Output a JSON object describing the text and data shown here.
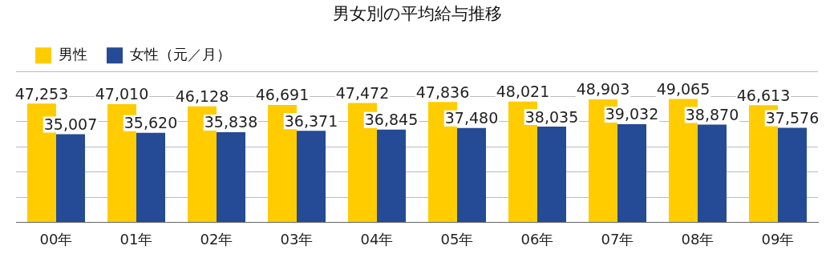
{
  "chart_data": {
    "type": "bar",
    "title": "男女別の平均給与推移",
    "categories": [
      "00年",
      "01年",
      "02年",
      "03年",
      "04年",
      "05年",
      "06年",
      "07年",
      "08年",
      "09年"
    ],
    "series": [
      {
        "name": "男性",
        "color": "#ffcc00",
        "values": [
          47253,
          47010,
          46128,
          46691,
          47472,
          47836,
          48021,
          48903,
          49065,
          46613
        ],
        "value_labels": [
          "47,253",
          "47,010",
          "46,128",
          "46,691",
          "47,472",
          "47,836",
          "48,021",
          "48,903",
          "49,065",
          "46,613"
        ]
      },
      {
        "name": "女性（元／月）",
        "color": "#254a96",
        "values": [
          35007,
          35620,
          35838,
          36371,
          36845,
          37480,
          38035,
          39032,
          38870,
          37576
        ],
        "value_labels": [
          "35,007",
          "35,620",
          "35,838",
          "36,371",
          "36,845",
          "37,480",
          "38,035",
          "39,032",
          "38,870",
          "37,576"
        ]
      }
    ],
    "tick_labels": "x",
    "grid": "y",
    "legend": "top left"
  }
}
